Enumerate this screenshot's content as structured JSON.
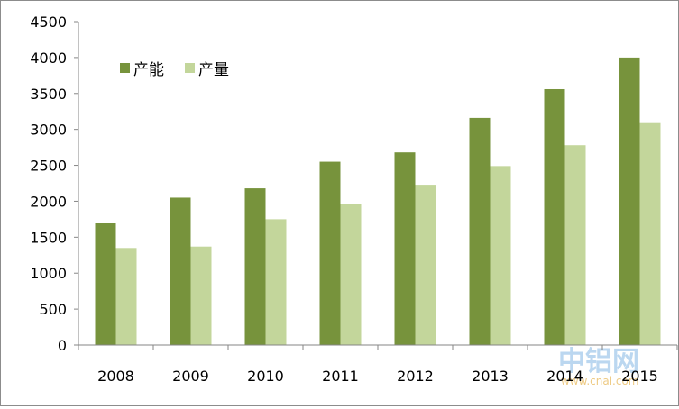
{
  "chart_data": {
    "type": "bar",
    "categories": [
      "2008",
      "2009",
      "2010",
      "2011",
      "2012",
      "2013",
      "2014",
      "2015"
    ],
    "series": [
      {
        "name": "产能",
        "color": "#77933c",
        "values": [
          1700,
          2050,
          2180,
          2550,
          2680,
          3160,
          3560,
          4000
        ]
      },
      {
        "name": "产量",
        "color": "#c3d69b",
        "values": [
          1350,
          1370,
          1750,
          1960,
          2230,
          2490,
          2780,
          3100
        ]
      }
    ],
    "ylim": [
      0,
      4500
    ],
    "yticks": [
      0,
      500,
      1000,
      1500,
      2000,
      2500,
      3000,
      3500,
      4000,
      4500
    ],
    "grid": false,
    "legend_position": "top-left",
    "title": "",
    "xlabel": "",
    "ylabel": ""
  },
  "watermark": {
    "main_text": "中铝网",
    "sub_text": "www.cnal.com"
  }
}
